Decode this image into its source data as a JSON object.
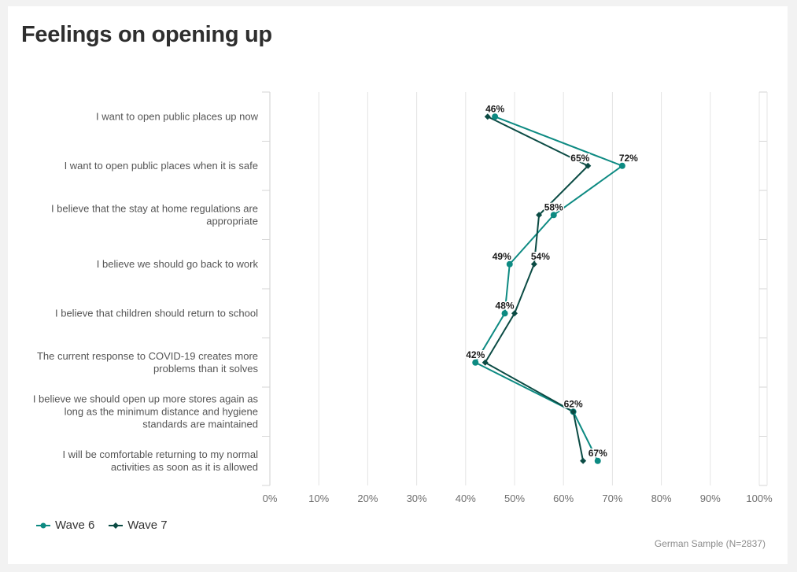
{
  "title": "Feelings on opening up",
  "footnote": "German Sample (N=2837)",
  "colors": {
    "wave6": "#0d8a82",
    "wave7": "#0b4b44"
  },
  "chart_data": {
    "type": "line",
    "orientation": "horizontal",
    "categories": [
      [
        "I want to open public places up now"
      ],
      [
        "I want to open public places when it is safe"
      ],
      [
        "I believe that the stay at home regulations are",
        "appropriate"
      ],
      [
        "I believe we should go back to work"
      ],
      [
        "I believe that children should return to school"
      ],
      [
        "The current response to COVID-19 creates more",
        "problems than it solves"
      ],
      [
        "I believe we should open up more stores again as",
        "long as the minimum distance and hygiene",
        "standards are maintained"
      ],
      [
        "I will be comfortable returning to my normal",
        "activities as soon as it is allowed"
      ]
    ],
    "series": [
      {
        "name": "Wave 6",
        "color": "#0d8a82",
        "marker": "circle",
        "values": [
          46,
          72,
          58,
          49,
          48,
          42,
          62,
          67
        ],
        "labels": [
          "46%",
          "72%",
          "58%",
          "49%",
          "48%",
          "42%",
          "62%",
          "67%"
        ]
      },
      {
        "name": "Wave 7",
        "color": "#0b4b44",
        "marker": "diamond",
        "values": [
          44.5,
          65,
          55,
          54,
          50,
          44,
          62,
          64
        ],
        "labels": [
          "",
          "65%",
          "",
          "54%",
          "",
          "",
          "",
          ""
        ]
      }
    ],
    "xlim": [
      0,
      100
    ],
    "xticks": [
      "0%",
      "10%",
      "20%",
      "30%",
      "40%",
      "50%",
      "60%",
      "70%",
      "80%",
      "90%",
      "100%"
    ],
    "grid": true,
    "legend": "bottom-left"
  }
}
